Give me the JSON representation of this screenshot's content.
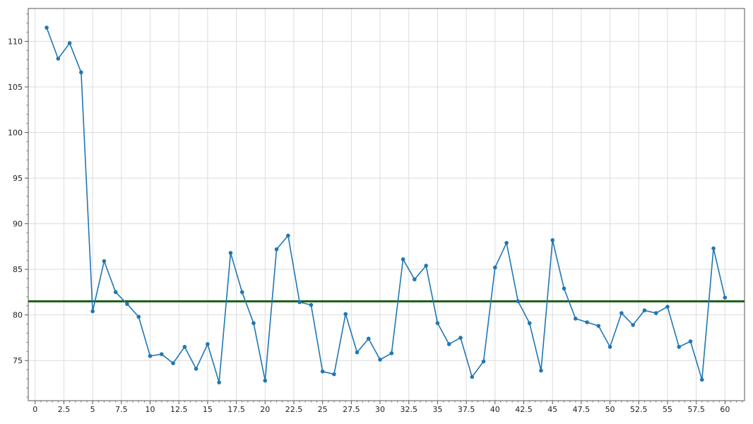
{
  "chart_data": {
    "type": "line",
    "title": "",
    "xlabel": "",
    "ylabel": "",
    "xlim": [
      -0.6,
      61.7
    ],
    "ylim": [
      70.6,
      113.6
    ],
    "grid": true,
    "x_ticks": [
      0,
      2.5,
      5,
      7.5,
      10,
      12.5,
      15,
      17.5,
      20,
      22.5,
      25,
      27.5,
      30,
      32.5,
      35,
      37.5,
      40,
      42.5,
      45,
      47.5,
      50,
      52.5,
      55,
      57.5,
      60
    ],
    "x_tick_labels": [
      "0",
      "2.5",
      "5",
      "7.5",
      "10",
      "12.5",
      "15",
      "17.5",
      "20",
      "22.5",
      "25",
      "27.5",
      "30",
      "32.5",
      "35",
      "37.5",
      "40",
      "42.5",
      "45",
      "47.5",
      "50",
      "52.5",
      "55",
      "57.5",
      "60"
    ],
    "y_ticks": [
      75,
      80,
      85,
      90,
      95,
      100,
      105,
      110
    ],
    "y_tick_labels": [
      "75",
      "80",
      "85",
      "90",
      "95",
      "100",
      "105",
      "110"
    ],
    "series": [
      {
        "color": "#1f77b4",
        "x": [
          1,
          2,
          3,
          4,
          5,
          6,
          7,
          8,
          9,
          10,
          11,
          12,
          13,
          14,
          15,
          16,
          17,
          18,
          19,
          20,
          21,
          22,
          23,
          24,
          25,
          26,
          27,
          28,
          29,
          30,
          31,
          32,
          33,
          34,
          35,
          36,
          37,
          38,
          39,
          40,
          41,
          42,
          43,
          44,
          45,
          46,
          47,
          48,
          49,
          50,
          51,
          52,
          53,
          54,
          55,
          56,
          57,
          58,
          59,
          60
        ],
        "y": [
          111.5,
          108.1,
          109.8,
          106.6,
          80.4,
          85.9,
          82.5,
          81.2,
          79.8,
          75.5,
          75.7,
          74.7,
          76.5,
          74.1,
          76.8,
          72.6,
          86.8,
          82.5,
          79.1,
          72.8,
          87.2,
          88.7,
          81.4,
          81.1,
          73.8,
          73.5,
          80.1,
          75.9,
          77.4,
          75.1,
          75.8,
          86.1,
          83.9,
          85.4,
          79.1,
          76.8,
          77.5,
          73.2,
          74.9,
          85.2,
          87.9,
          81.5,
          79.1,
          73.9,
          88.2,
          82.9,
          79.6,
          79.2,
          78.8,
          76.5,
          80.2,
          78.9,
          80.5,
          80.2,
          80.9,
          76.5,
          77.1,
          72.9,
          87.3,
          81.9
        ]
      }
    ],
    "reference_line": {
      "y": 81.5,
      "color": "#1a5e12"
    }
  }
}
